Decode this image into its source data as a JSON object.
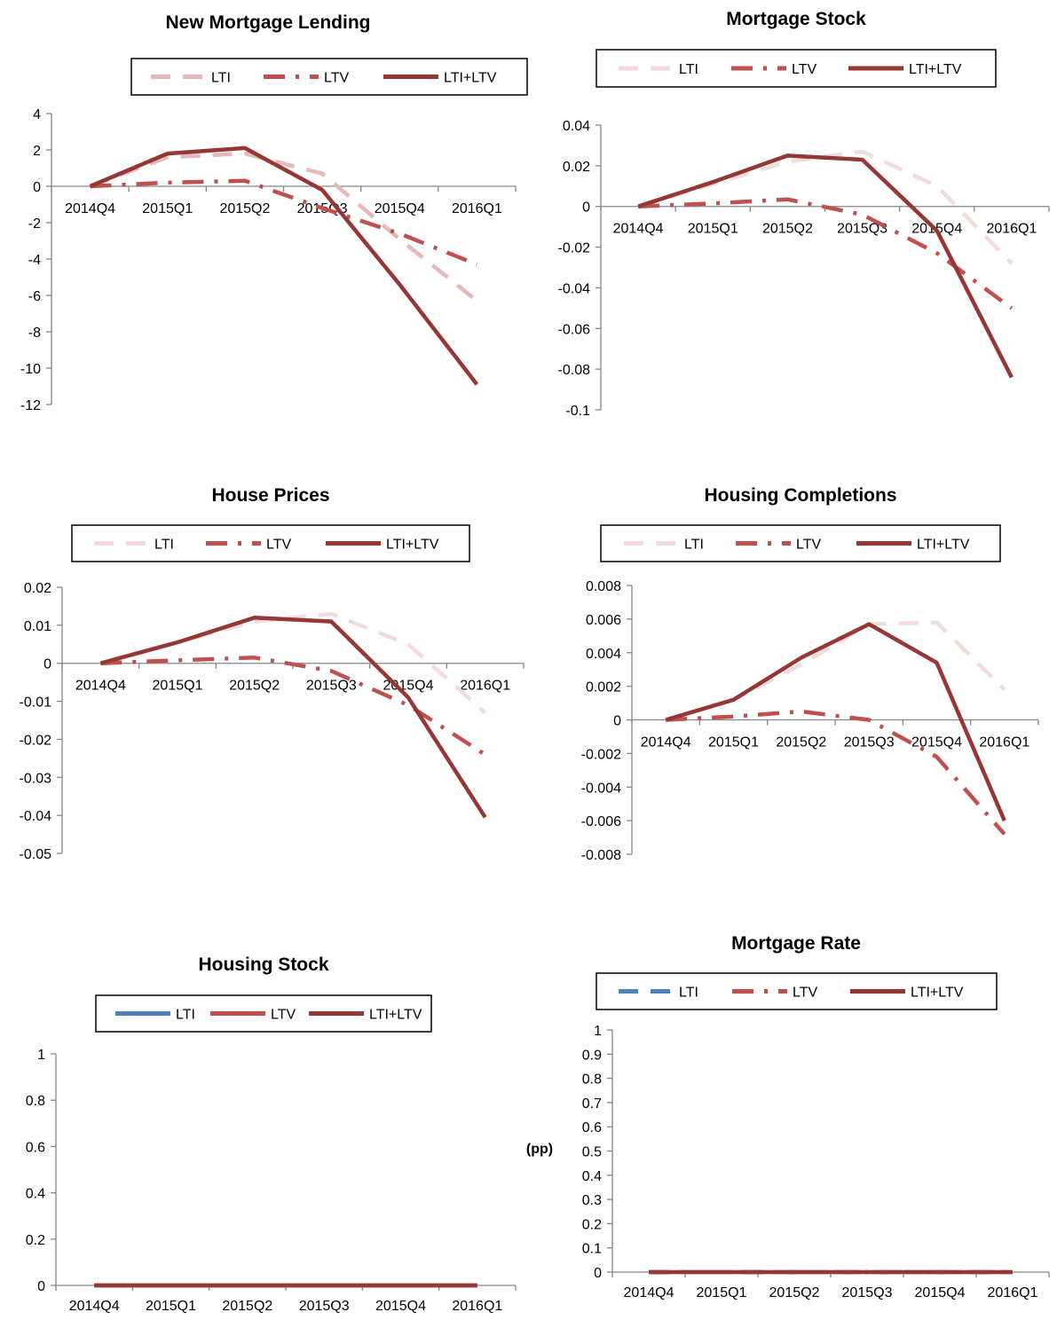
{
  "chart_data": [
    {
      "type": "line",
      "title": "New Mortgage Lending",
      "categories": [
        "2014Q4",
        "2015Q1",
        "2015Q2",
        "2015Q3",
        "2015Q4",
        "2016Q1"
      ],
      "ylim": [
        -12,
        4
      ],
      "yticks": [
        4,
        2,
        0,
        -2,
        -4,
        -6,
        -8,
        -10,
        -12
      ],
      "ytick_labels": [
        "4",
        "2",
        "0",
        "-2",
        "-4",
        "-6",
        "-8",
        "-10",
        "-12"
      ],
      "legend": "top",
      "series": [
        {
          "name": "LTI",
          "color": "#e6b8b7",
          "dash": "long-dash",
          "values": [
            0,
            1.6,
            1.8,
            0.7,
            -2.9,
            -6.3
          ]
        },
        {
          "name": "LTV",
          "color": "#c0504d",
          "dash": "long-dash-dot",
          "values": [
            0,
            0.2,
            0.3,
            -1.2,
            -2.6,
            -4.3
          ]
        },
        {
          "name": "LTI+LTV",
          "color": "#953735",
          "dash": "solid",
          "values": [
            0,
            1.8,
            2.1,
            -0.2,
            -5.4,
            -10.9
          ]
        }
      ]
    },
    {
      "type": "line",
      "title": "Mortgage Stock",
      "categories": [
        "2014Q4",
        "2015Q1",
        "2015Q2",
        "2015Q3",
        "2015Q4",
        "2016Q1"
      ],
      "ylim": [
        -0.1,
        0.04
      ],
      "yticks": [
        0.04,
        0.02,
        0,
        -0.02,
        -0.04,
        -0.06,
        -0.08,
        -0.1
      ],
      "ytick_labels": [
        "0.04",
        "0.02",
        "0",
        "-0.02",
        "-0.04",
        "-0.06",
        "-0.08",
        "-0.1"
      ],
      "legend": "top",
      "series": [
        {
          "name": "LTI",
          "color": "#f2dcdb",
          "dash": "long-dash",
          "values": [
            0,
            0.011,
            0.022,
            0.027,
            0.01,
            -0.028
          ]
        },
        {
          "name": "LTV",
          "color": "#c0504d",
          "dash": "long-dash-dot",
          "values": [
            0,
            0.0015,
            0.0035,
            -0.004,
            -0.023,
            -0.05
          ]
        },
        {
          "name": "LTI+LTV",
          "color": "#953735",
          "dash": "solid",
          "values": [
            0,
            0.012,
            0.025,
            0.023,
            -0.012,
            -0.084
          ]
        }
      ]
    },
    {
      "type": "line",
      "title": "House Prices",
      "categories": [
        "2014Q4",
        "2015Q1",
        "2015Q2",
        "2015Q3",
        "2015Q4",
        "2016Q1"
      ],
      "ylim": [
        -0.05,
        0.02
      ],
      "yticks": [
        0.02,
        0.01,
        0,
        -0.01,
        -0.02,
        -0.03,
        -0.04,
        -0.05
      ],
      "ytick_labels": [
        "0.02",
        "0.01",
        "0",
        "-0.01",
        "-0.02",
        "-0.03",
        "-0.04",
        "-0.05"
      ],
      "legend": "top",
      "series": [
        {
          "name": "LTI",
          "color": "#f2dcdb",
          "dash": "long-dash",
          "values": [
            0,
            0.0055,
            0.011,
            0.013,
            0.005,
            -0.013
          ]
        },
        {
          "name": "LTV",
          "color": "#c0504d",
          "dash": "long-dash-dot",
          "values": [
            0,
            0.0008,
            0.0015,
            -0.002,
            -0.011,
            -0.024
          ]
        },
        {
          "name": "LTI+LTV",
          "color": "#953735",
          "dash": "solid",
          "values": [
            0,
            0.0055,
            0.012,
            0.011,
            -0.009,
            -0.0405
          ]
        }
      ]
    },
    {
      "type": "line",
      "title": "Housing Completions",
      "categories": [
        "2014Q4",
        "2015Q1",
        "2015Q2",
        "2015Q3",
        "2015Q4",
        "2016Q1"
      ],
      "ylim": [
        -0.008,
        0.008
      ],
      "yticks": [
        0.008,
        0.006,
        0.004,
        0.002,
        0,
        -0.002,
        -0.004,
        -0.006,
        -0.008
      ],
      "ytick_labels": [
        "0.008",
        "0.006",
        "0.004",
        "0.002",
        "0",
        "-0.002",
        "-0.004",
        "-0.006",
        "-0.008"
      ],
      "legend": "top",
      "series": [
        {
          "name": "LTI",
          "color": "#f2dcdb",
          "dash": "long-dash",
          "values": [
            0,
            0.0012,
            0.0033,
            0.0057,
            0.0058,
            0.0018
          ]
        },
        {
          "name": "LTV",
          "color": "#c0504d",
          "dash": "long-dash-dot",
          "values": [
            0,
            0.0002,
            0.0005,
            0,
            -0.0022,
            -0.0068
          ]
        },
        {
          "name": "LTI+LTV",
          "color": "#953735",
          "dash": "solid",
          "values": [
            0,
            0.0012,
            0.0037,
            0.0057,
            0.0034,
            -0.006
          ]
        }
      ]
    },
    {
      "type": "line",
      "title": "Housing Stock",
      "categories": [
        "2014Q4",
        "2015Q1",
        "2015Q2",
        "2015Q3",
        "2015Q4",
        "2016Q1"
      ],
      "ylim": [
        0,
        1
      ],
      "yticks": [
        1,
        0.8,
        0.6,
        0.4,
        0.2,
        0
      ],
      "ytick_labels": [
        "1",
        "0.8",
        "0.6",
        "0.4",
        "0.2",
        "0"
      ],
      "legend": "top",
      "series": [
        {
          "name": "LTI",
          "color": "#4f81bd",
          "dash": "solid",
          "values": [
            0,
            0,
            0,
            0,
            0,
            0
          ]
        },
        {
          "name": "LTV",
          "color": "#c0504d",
          "dash": "solid",
          "values": [
            0,
            0,
            0,
            0,
            0,
            0
          ]
        },
        {
          "name": "LTI+LTV",
          "color": "#953735",
          "dash": "solid",
          "values": [
            0,
            0,
            0,
            0,
            0,
            0
          ]
        }
      ]
    },
    {
      "type": "line",
      "title": "Mortgage Rate",
      "categories": [
        "2014Q4",
        "2015Q1",
        "2015Q2",
        "2015Q3",
        "2015Q4",
        "2016Q1"
      ],
      "ylabel": "(pp)",
      "ylim": [
        0,
        1
      ],
      "yticks": [
        1,
        0.9,
        0.8,
        0.7,
        0.6,
        0.5,
        0.4,
        0.3,
        0.2,
        0.1,
        0
      ],
      "ytick_labels": [
        "1",
        "0.9",
        "0.8",
        "0.7",
        "0.6",
        "0.5",
        "0.4",
        "0.3",
        "0.2",
        "0.1",
        "0"
      ],
      "legend": "top",
      "series": [
        {
          "name": "LTI",
          "color": "#4f81bd",
          "dash": "long-dash",
          "values": [
            0,
            0,
            0,
            0,
            0,
            0
          ]
        },
        {
          "name": "LTV",
          "color": "#c0504d",
          "dash": "long-dash-dot",
          "values": [
            0,
            0,
            0,
            0,
            0,
            0
          ]
        },
        {
          "name": "LTI+LTV",
          "color": "#953735",
          "dash": "solid",
          "values": [
            0,
            0,
            0,
            0,
            0,
            0
          ]
        }
      ]
    }
  ]
}
